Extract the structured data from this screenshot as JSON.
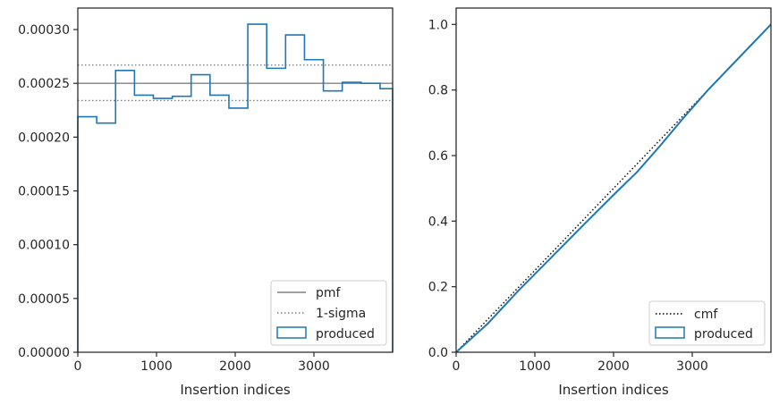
{
  "chart_data": [
    {
      "type": "line",
      "panel": "left",
      "xlabel": "Insertion indices",
      "ylabel": "",
      "xlim": [
        0,
        4000
      ],
      "ylim": [
        0,
        0.00032
      ],
      "xticks": [
        0,
        1000,
        2000,
        3000
      ],
      "xtick_labels": [
        "0",
        "1000",
        "2000",
        "3000"
      ],
      "yticks": [
        0,
        5e-05,
        0.0001,
        0.00015,
        0.0002,
        0.00025,
        0.0003
      ],
      "ytick_labels": [
        "0.00000",
        "0.00005",
        "0.00010",
        "0.00015",
        "0.00020",
        "0.00025",
        "0.00030"
      ],
      "grid": false,
      "legend_position": "lower-right",
      "series": [
        {
          "name": "pmf",
          "style": "solid",
          "color": "#808080",
          "y": 0.00025
        },
        {
          "name": "1-sigma",
          "style": "dotted",
          "color": "#808080",
          "y": [
            0.000234,
            0.000267
          ]
        },
        {
          "name": "produced",
          "style": "step",
          "color": "#1f77b4",
          "bin_edges": [
            0,
            240,
            480,
            720,
            960,
            1200,
            1440,
            1680,
            1920,
            2160,
            2400,
            2640,
            2880,
            3120,
            3360,
            3600,
            3840,
            4000
          ],
          "values": [
            0.000219,
            0.000213,
            0.000262,
            0.000239,
            0.000236,
            0.000238,
            0.000258,
            0.000239,
            0.000227,
            0.000305,
            0.000264,
            0.000295,
            0.000272,
            0.000243,
            0.000251,
            0.00025,
            0.000245
          ]
        }
      ]
    },
    {
      "type": "line",
      "panel": "right",
      "xlabel": "Insertion indices",
      "ylabel": "",
      "xlim": [
        0,
        4000
      ],
      "ylim": [
        0,
        1.05
      ],
      "xticks": [
        0,
        1000,
        2000,
        3000
      ],
      "xtick_labels": [
        "0",
        "1000",
        "2000",
        "3000"
      ],
      "yticks": [
        0,
        0.2,
        0.4,
        0.6,
        0.8,
        1.0
      ],
      "ytick_labels": [
        "0.0",
        "0.2",
        "0.4",
        "0.6",
        "0.8",
        "1.0"
      ],
      "grid": false,
      "legend_position": "lower-right",
      "series": [
        {
          "name": "cmf",
          "style": "dotted",
          "color": "#000000",
          "x": [
            0,
            4000
          ],
          "y": [
            0,
            1.0
          ]
        },
        {
          "name": "produced",
          "style": "solid",
          "color": "#1f77b4",
          "x": [
            0,
            400,
            800,
            1200,
            1600,
            2000,
            2300,
            2600,
            2900,
            3200,
            3600,
            4000
          ],
          "y": [
            0,
            0.087,
            0.19,
            0.287,
            0.384,
            0.48,
            0.55,
            0.632,
            0.718,
            0.8,
            0.9,
            1.0
          ]
        }
      ]
    }
  ]
}
